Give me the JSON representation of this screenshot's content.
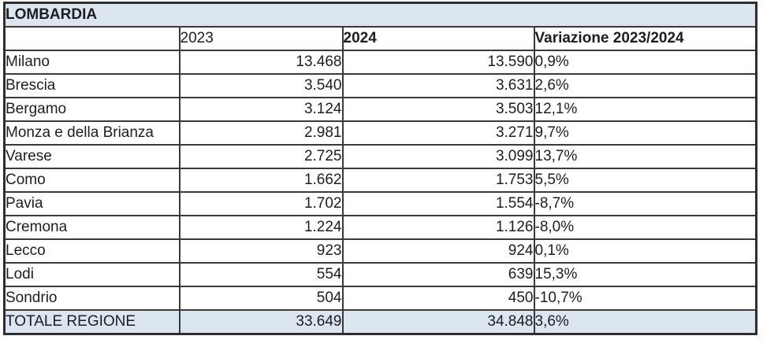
{
  "colors": {
    "band_blue": "#dce6f1",
    "border": "#3a3a3a",
    "text": "#1e1e1e"
  },
  "table": {
    "title": "LOMBARDIA",
    "columns": {
      "blank": "",
      "col2023": "2023",
      "col2024": "2024",
      "variazione": "Variazione 2023/2024"
    },
    "rows": [
      {
        "label": "Milano",
        "v2023": "13.468",
        "v2024": "13.590",
        "variazione": "0,9%"
      },
      {
        "label": "Brescia",
        "v2023": "3.540",
        "v2024": "3.631",
        "variazione": "2,6%"
      },
      {
        "label": "Bergamo",
        "v2023": "3.124",
        "v2024": "3.503",
        "variazione": "12,1%"
      },
      {
        "label": "Monza e della Brianza",
        "v2023": "2.981",
        "v2024": "3.271",
        "variazione": "9,7%"
      },
      {
        "label": "Varese",
        "v2023": "2.725",
        "v2024": "3.099",
        "variazione": "13,7%"
      },
      {
        "label": "Como",
        "v2023": "1.662",
        "v2024": "1.753",
        "variazione": "5,5%"
      },
      {
        "label": "Pavia",
        "v2023": "1.702",
        "v2024": "1.554",
        "variazione": "-8,7%"
      },
      {
        "label": "Cremona",
        "v2023": "1.224",
        "v2024": "1.126",
        "variazione": "-8,0%"
      },
      {
        "label": "Lecco",
        "v2023": "923",
        "v2024": "924",
        "variazione": "0,1%"
      },
      {
        "label": "Lodi",
        "v2023": "554",
        "v2024": "639",
        "variazione": "15,3%"
      },
      {
        "label": "Sondrio",
        "v2023": "504",
        "v2024": "450",
        "variazione": "-10,7%"
      }
    ],
    "total": {
      "label": "TOTALE REGIONE",
      "v2023": "33.649",
      "v2024": "34.848",
      "variazione": "3,6%"
    }
  }
}
